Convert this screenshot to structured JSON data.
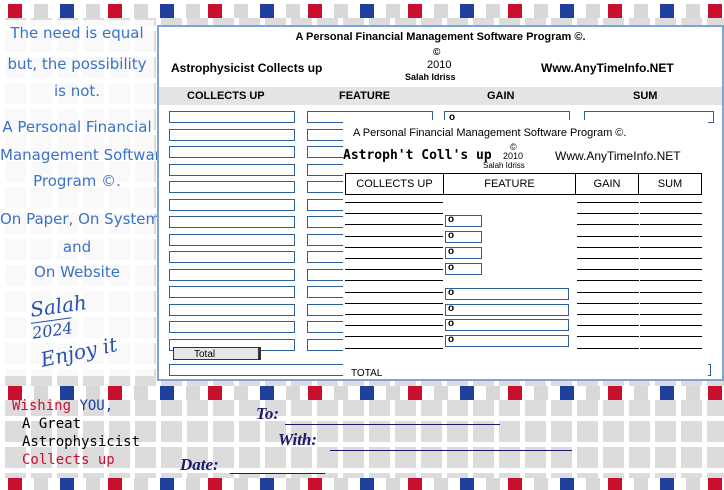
{
  "left": {
    "motto": [
      "The need is equal",
      "but, the possibility",
      "is not."
    ],
    "program": [
      "A Personal Financial",
      "Management Software",
      "Program ©."
    ],
    "platforms": [
      "On Paper, On System",
      "and",
      "On Website"
    ],
    "signature": [
      "Salah",
      "2024",
      "Enjoy it"
    ],
    "wishing": {
      "word": "Wishing",
      "you": "YOU,",
      "line2": "A Great",
      "line3": "Astrophysicist",
      "line4": "Collects up"
    }
  },
  "form": {
    "title": "A Personal Financial Management Software Program ©.",
    "name": "Astrophysicist Collects up",
    "copyright": "©",
    "year": "2010",
    "author": "Salah Idriss",
    "website": "Www.AnyTimeInfo.NET",
    "headers": [
      "COLLECTS UP",
      "FEATURE",
      "GAIN",
      "SUM"
    ],
    "gain_marker": "o",
    "total": "Total"
  },
  "overlay": {
    "title": "A Personal Financial Management Software Program ©.",
    "name": "Astroph't Coll's up",
    "copyright": "©",
    "year": "2010",
    "author": "Salah Idriss",
    "website": "Www.AnyTimeInfo.NET",
    "headers": [
      "COLLECTS UP",
      "FEATURE",
      "GAIN",
      "SUM"
    ],
    "markers": [
      "o",
      "o",
      "o",
      "o",
      "o",
      "o",
      "o",
      "o"
    ],
    "total": "TOTAL"
  },
  "footer": {
    "to": "To:",
    "with": "With:",
    "date": "Date:"
  }
}
